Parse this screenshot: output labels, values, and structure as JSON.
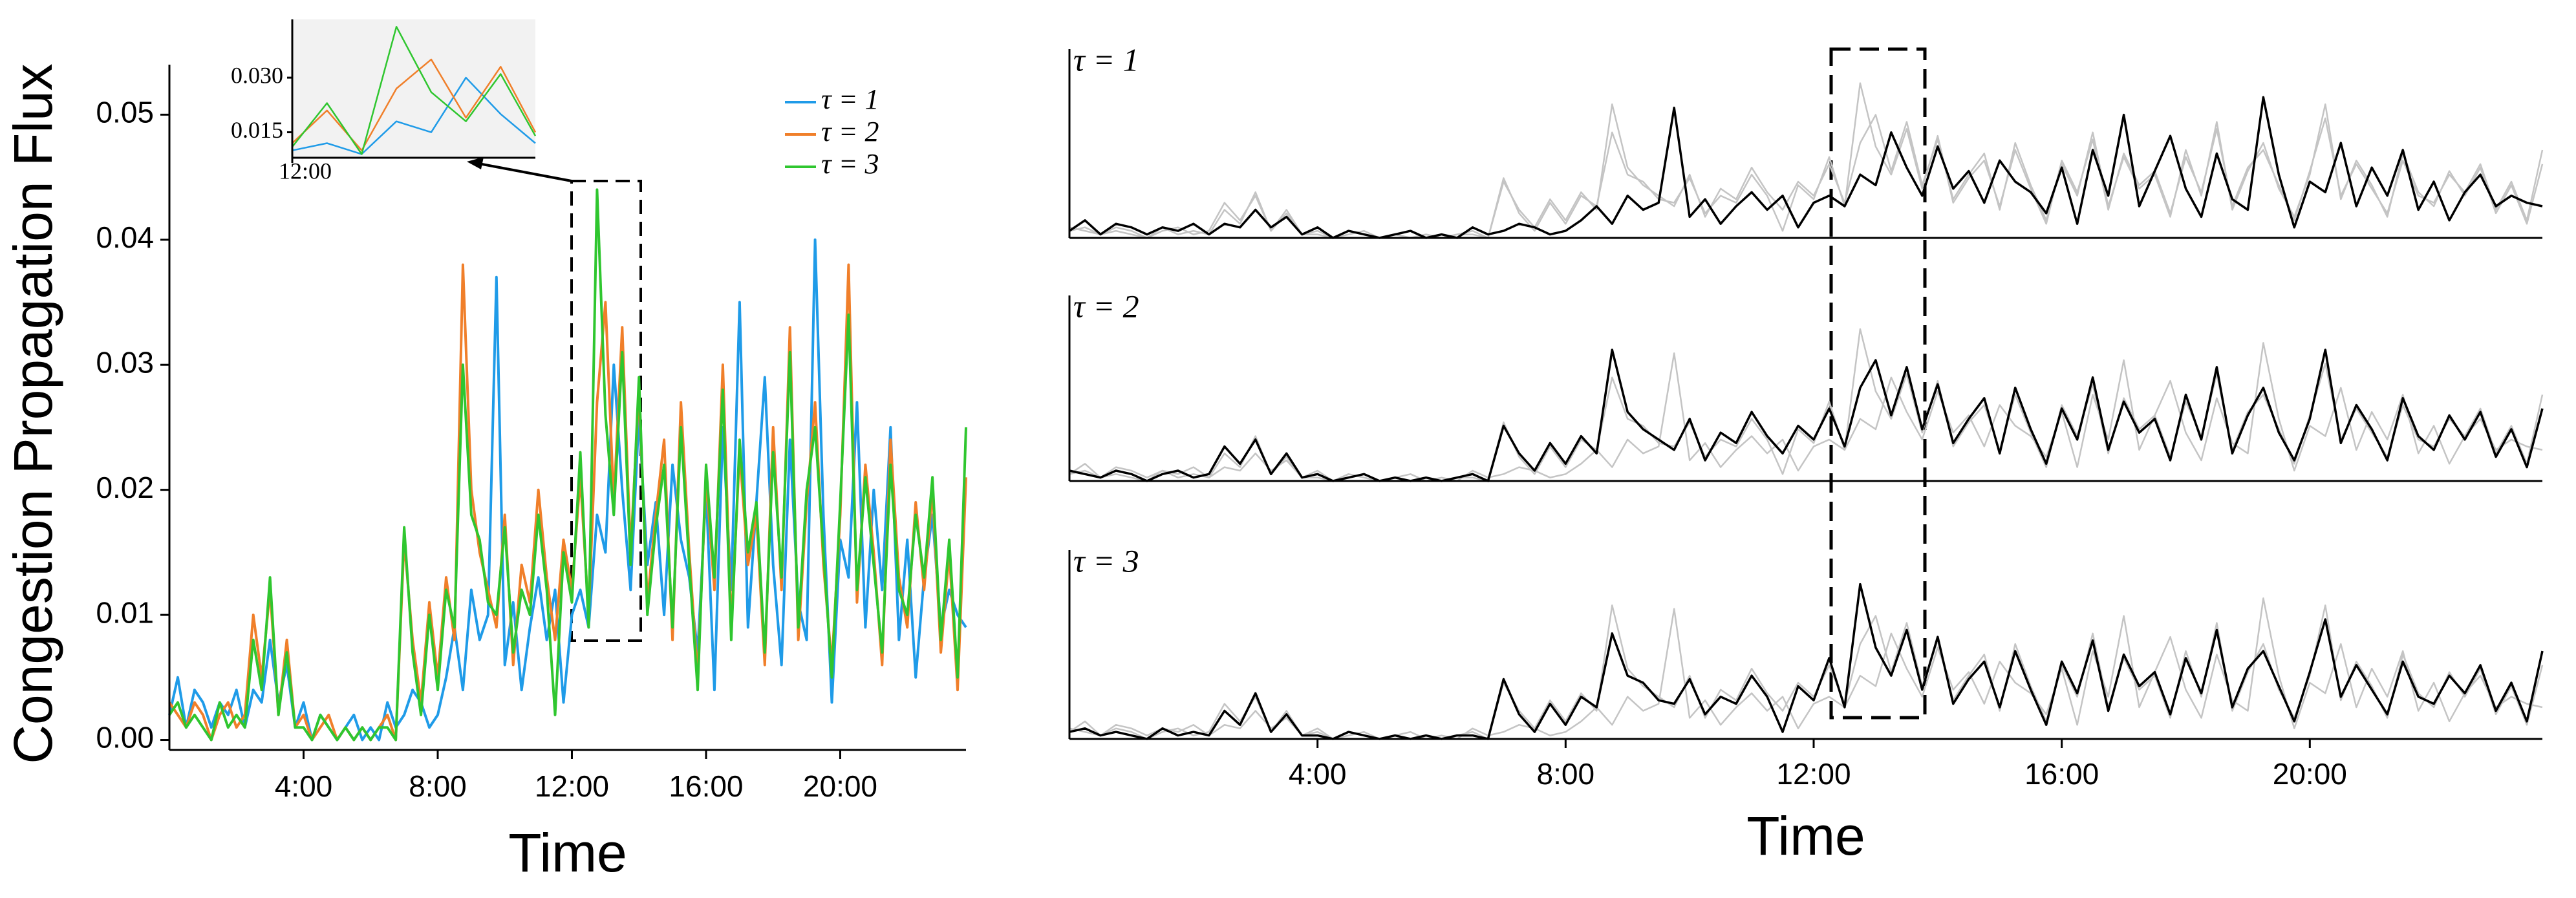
{
  "chart_data": [
    {
      "type": "line",
      "xlabel": "Time",
      "ylabel": "Congestion Propagation Flux",
      "x": [
        0,
        0.25,
        0.5,
        0.75,
        1,
        1.25,
        1.5,
        1.75,
        2,
        2.25,
        2.5,
        2.75,
        3,
        3.25,
        3.5,
        3.75,
        4,
        4.25,
        4.5,
        4.75,
        5,
        5.25,
        5.5,
        5.75,
        6,
        6.25,
        6.5,
        6.75,
        7,
        7.25,
        7.5,
        7.75,
        8,
        8.25,
        8.5,
        8.75,
        9,
        9.25,
        9.5,
        9.75,
        10,
        10.25,
        10.5,
        10.75,
        11,
        11.25,
        11.5,
        11.75,
        12,
        12.25,
        12.5,
        12.75,
        13,
        13.25,
        13.5,
        13.75,
        14,
        14.25,
        14.5,
        14.75,
        15,
        15.25,
        15.5,
        15.75,
        16,
        16.25,
        16.5,
        16.75,
        17,
        17.25,
        17.5,
        17.75,
        18,
        18.25,
        18.5,
        18.75,
        19,
        19.25,
        19.5,
        19.75,
        20,
        20.25,
        20.5,
        20.75,
        21,
        21.25,
        21.5,
        21.75,
        22,
        22.25,
        22.5,
        22.75,
        23,
        23.25,
        23.5,
        23.75
      ],
      "series": [
        {
          "name": "τ = 1",
          "color": "#1f9be8",
          "values": [
            0.002,
            0.005,
            0.001,
            0.004,
            0.003,
            0.001,
            0.003,
            0.002,
            0.004,
            0.001,
            0.004,
            0.003,
            0.008,
            0.003,
            0.006,
            0.001,
            0.003,
            0.0,
            0.002,
            0.001,
            0.0,
            0.001,
            0.002,
            0.0,
            0.001,
            0.0,
            0.003,
            0.001,
            0.002,
            0.004,
            0.003,
            0.001,
            0.002,
            0.005,
            0.009,
            0.004,
            0.012,
            0.008,
            0.01,
            0.037,
            0.006,
            0.011,
            0.004,
            0.009,
            0.013,
            0.008,
            0.012,
            0.003,
            0.01,
            0.012,
            0.009,
            0.018,
            0.015,
            0.03,
            0.02,
            0.012,
            0.026,
            0.014,
            0.019,
            0.01,
            0.022,
            0.016,
            0.013,
            0.007,
            0.02,
            0.004,
            0.025,
            0.012,
            0.035,
            0.009,
            0.019,
            0.029,
            0.014,
            0.006,
            0.024,
            0.011,
            0.008,
            0.04,
            0.018,
            0.003,
            0.016,
            0.013,
            0.027,
            0.009,
            0.02,
            0.012,
            0.025,
            0.008,
            0.016,
            0.005,
            0.013,
            0.018,
            0.009,
            0.012,
            0.01,
            0.009
          ]
        },
        {
          "name": "τ = 2",
          "color": "#f07f2a",
          "values": [
            0.003,
            0.002,
            0.001,
            0.003,
            0.002,
            0.0,
            0.002,
            0.003,
            0.001,
            0.002,
            0.01,
            0.005,
            0.012,
            0.002,
            0.008,
            0.001,
            0.002,
            0.0,
            0.001,
            0.002,
            0.0,
            0.001,
            0.0,
            0.001,
            0.0,
            0.001,
            0.002,
            0.0,
            0.016,
            0.008,
            0.003,
            0.011,
            0.005,
            0.013,
            0.008,
            0.038,
            0.02,
            0.015,
            0.012,
            0.009,
            0.018,
            0.006,
            0.014,
            0.011,
            0.02,
            0.013,
            0.008,
            0.016,
            0.012,
            0.021,
            0.01,
            0.027,
            0.035,
            0.019,
            0.033,
            0.015,
            0.028,
            0.011,
            0.018,
            0.024,
            0.008,
            0.027,
            0.015,
            0.005,
            0.021,
            0.012,
            0.03,
            0.009,
            0.023,
            0.014,
            0.018,
            0.006,
            0.025,
            0.012,
            0.033,
            0.008,
            0.019,
            0.027,
            0.014,
            0.006,
            0.018,
            0.038,
            0.011,
            0.022,
            0.015,
            0.006,
            0.024,
            0.013,
            0.009,
            0.019,
            0.012,
            0.02,
            0.007,
            0.015,
            0.004,
            0.021
          ]
        },
        {
          "name": "τ = 3",
          "color": "#2fc62f",
          "values": [
            0.002,
            0.003,
            0.001,
            0.002,
            0.001,
            0.0,
            0.003,
            0.001,
            0.002,
            0.001,
            0.008,
            0.004,
            0.013,
            0.002,
            0.007,
            0.001,
            0.001,
            0.0,
            0.002,
            0.001,
            0.0,
            0.001,
            0.0,
            0.001,
            0.0,
            0.001,
            0.001,
            0.0,
            0.017,
            0.007,
            0.002,
            0.01,
            0.004,
            0.012,
            0.009,
            0.03,
            0.018,
            0.016,
            0.011,
            0.01,
            0.017,
            0.007,
            0.012,
            0.01,
            0.018,
            0.012,
            0.002,
            0.015,
            0.011,
            0.023,
            0.009,
            0.044,
            0.026,
            0.018,
            0.031,
            0.014,
            0.029,
            0.01,
            0.017,
            0.022,
            0.009,
            0.025,
            0.014,
            0.004,
            0.022,
            0.013,
            0.028,
            0.008,
            0.024,
            0.015,
            0.019,
            0.007,
            0.023,
            0.013,
            0.031,
            0.009,
            0.02,
            0.025,
            0.015,
            0.005,
            0.019,
            0.034,
            0.012,
            0.021,
            0.014,
            0.007,
            0.022,
            0.012,
            0.01,
            0.018,
            0.013,
            0.021,
            0.008,
            0.016,
            0.005,
            0.025
          ]
        }
      ],
      "xlim": [
        0,
        23.75
      ],
      "ylim": [
        -0.0008,
        0.054
      ],
      "xticks": [
        {
          "value": 4,
          "label": "4:00"
        },
        {
          "value": 8,
          "label": "8:00"
        },
        {
          "value": 12,
          "label": "12:00"
        },
        {
          "value": 16,
          "label": "16:00"
        },
        {
          "value": 20,
          "label": "20:00"
        }
      ],
      "yticks": [
        {
          "value": 0,
          "label": "0.00"
        },
        0.01,
        0.02,
        0.03,
        0.04,
        0.05
      ],
      "legend": "upper right"
    },
    {
      "type": "inset",
      "xlim": [
        12,
        13.75
      ],
      "ylim": [
        0.008,
        0.046
      ],
      "xticks": [
        {
          "value": 12,
          "label": "12:00"
        }
      ],
      "yticks": [
        0.015,
        {
          "value": 0.03,
          "label": "0.030"
        }
      ],
      "background": "#f2f2f2"
    },
    {
      "type": "panels",
      "xlabel": "Time",
      "xlim": [
        0,
        23.75
      ],
      "ylim": [
        0,
        0.05
      ],
      "xticks": [
        {
          "value": 4,
          "label": "4:00"
        },
        {
          "value": 8,
          "label": "8:00"
        },
        {
          "value": 12,
          "label": "12:00"
        },
        {
          "value": 16,
          "label": "16:00"
        },
        {
          "value": 20,
          "label": "20:00"
        }
      ],
      "highlight_color": "#000000",
      "muted_color": "#c4c4c4"
    }
  ]
}
